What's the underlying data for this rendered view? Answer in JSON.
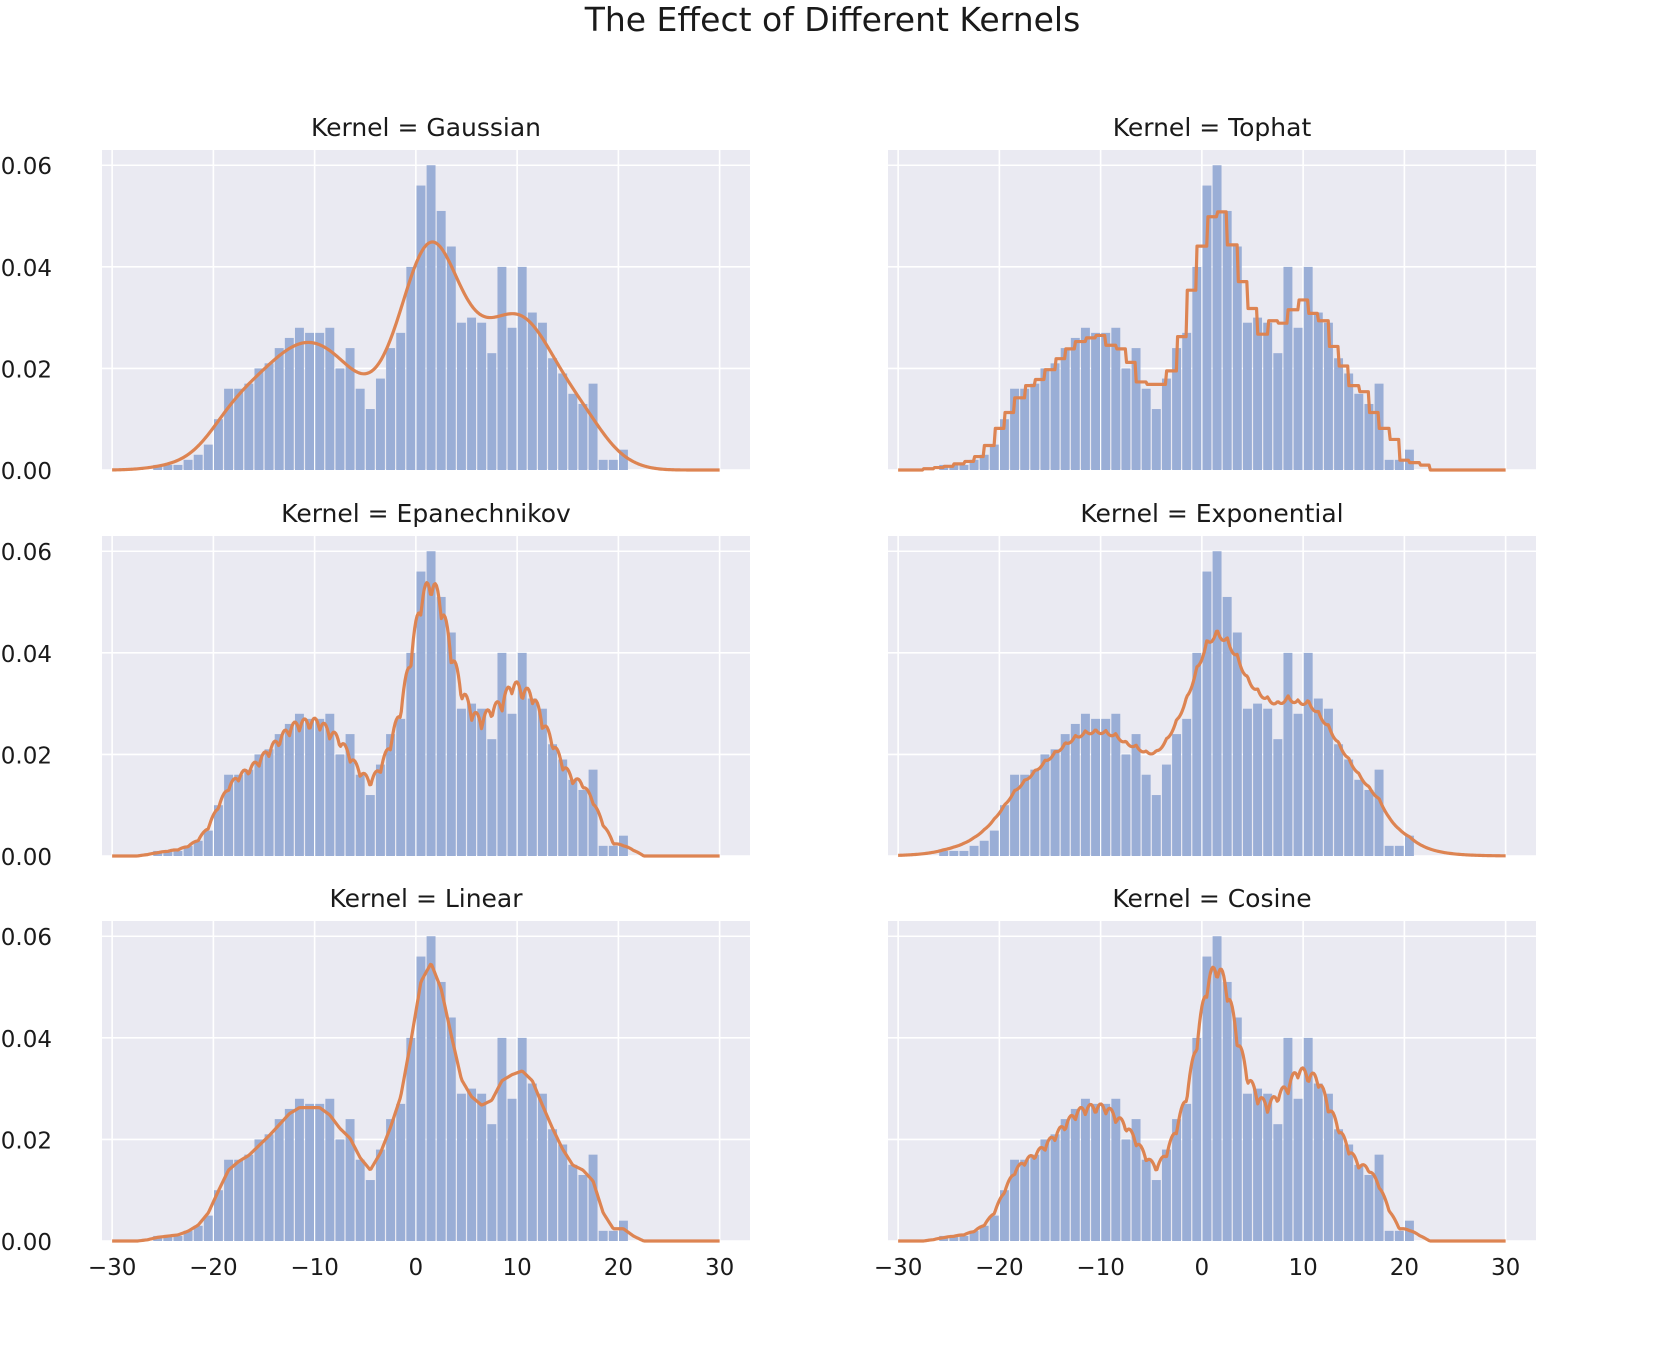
{
  "figure": {
    "title": "The Effect of Different Kernels"
  },
  "colors": {
    "background": "#eaeaf2",
    "grid": "#ffffff",
    "bars": "#9aaed6",
    "kde": "#dd8452",
    "text": "#1a1a1a"
  },
  "chart_data": [
    {
      "type": "bar",
      "title": "Kernel = Gaussian",
      "kernel": "gaussian",
      "bandwidth": 2.0,
      "grid": true,
      "xlim": [
        -31,
        33
      ],
      "ylim": [
        0,
        0.063
      ],
      "xticks": [
        -30,
        -20,
        -10,
        0,
        10,
        20,
        30
      ],
      "xtick_labels": [
        "−30",
        "−20",
        "−10",
        "0",
        "10",
        "20",
        "30"
      ],
      "yticks": [
        0,
        0.02,
        0.04,
        0.06
      ],
      "ytick_labels": [
        "0.00",
        "0.02",
        "0.04",
        "0.06"
      ],
      "show_xticks": false,
      "show_yticks": true
    },
    {
      "type": "bar",
      "title": "Kernel = Tophat",
      "kernel": "tophat",
      "bandwidth": 2.0,
      "grid": true,
      "xlim": [
        -31,
        33
      ],
      "ylim": [
        0,
        0.063
      ],
      "xticks": [
        -30,
        -20,
        -10,
        0,
        10,
        20,
        30
      ],
      "xtick_labels": [
        "−30",
        "−20",
        "−10",
        "0",
        "10",
        "20",
        "30"
      ],
      "yticks": [
        0,
        0.02,
        0.04,
        0.06
      ],
      "ytick_labels": [
        "0.00",
        "0.02",
        "0.04",
        "0.06"
      ],
      "show_xticks": false,
      "show_yticks": false
    },
    {
      "type": "bar",
      "title": "Kernel = Epanechnikov",
      "kernel": "epanechnikov",
      "bandwidth": 2.0,
      "grid": true,
      "xlim": [
        -31,
        33
      ],
      "ylim": [
        0,
        0.063
      ],
      "xticks": [
        -30,
        -20,
        -10,
        0,
        10,
        20,
        30
      ],
      "xtick_labels": [
        "−30",
        "−20",
        "−10",
        "0",
        "10",
        "20",
        "30"
      ],
      "yticks": [
        0,
        0.02,
        0.04,
        0.06
      ],
      "ytick_labels": [
        "0.00",
        "0.02",
        "0.04",
        "0.06"
      ],
      "show_xticks": false,
      "show_yticks": true
    },
    {
      "type": "bar",
      "title": "Kernel = Exponential",
      "kernel": "exponential",
      "bandwidth": 2.0,
      "grid": true,
      "xlim": [
        -31,
        33
      ],
      "ylim": [
        0,
        0.063
      ],
      "xticks": [
        -30,
        -20,
        -10,
        0,
        10,
        20,
        30
      ],
      "xtick_labels": [
        "−30",
        "−20",
        "−10",
        "0",
        "10",
        "20",
        "30"
      ],
      "yticks": [
        0,
        0.02,
        0.04,
        0.06
      ],
      "ytick_labels": [
        "0.00",
        "0.02",
        "0.04",
        "0.06"
      ],
      "show_xticks": false,
      "show_yticks": false
    },
    {
      "type": "bar",
      "title": "Kernel = Linear",
      "kernel": "linear",
      "bandwidth": 2.0,
      "grid": true,
      "xlim": [
        -31,
        33
      ],
      "ylim": [
        0,
        0.063
      ],
      "xticks": [
        -30,
        -20,
        -10,
        0,
        10,
        20,
        30
      ],
      "xtick_labels": [
        "−30",
        "−20",
        "−10",
        "0",
        "10",
        "20",
        "30"
      ],
      "yticks": [
        0,
        0.02,
        0.04,
        0.06
      ],
      "ytick_labels": [
        "0.00",
        "0.02",
        "0.04",
        "0.06"
      ],
      "show_xticks": true,
      "show_yticks": true
    },
    {
      "type": "bar",
      "title": "Kernel = Cosine",
      "kernel": "cosine",
      "bandwidth": 2.0,
      "grid": true,
      "xlim": [
        -31,
        33
      ],
      "ylim": [
        0,
        0.063
      ],
      "xticks": [
        -30,
        -20,
        -10,
        0,
        10,
        20,
        30
      ],
      "xtick_labels": [
        "−30",
        "−20",
        "−10",
        "0",
        "10",
        "20",
        "30"
      ],
      "yticks": [
        0,
        0.02,
        0.04,
        0.06
      ],
      "ytick_labels": [
        "0.00",
        "0.02",
        "0.04",
        "0.06"
      ],
      "show_xticks": true,
      "show_yticks": false
    }
  ],
  "histogram": {
    "bin_edges": [
      -26,
      -25,
      -24,
      -23,
      -22,
      -21,
      -20,
      -19,
      -18,
      -17,
      -16,
      -15,
      -14,
      -13,
      -12,
      -11,
      -10,
      -9,
      -8,
      -7,
      -6,
      -5,
      -4,
      -3,
      -2,
      -1,
      0,
      1,
      2,
      3,
      4,
      5,
      6,
      7,
      8,
      9,
      10,
      11,
      12,
      13,
      14,
      15,
      16,
      17,
      18,
      19,
      20,
      21
    ],
    "densities": [
      0.001,
      0.001,
      0.001,
      0.002,
      0.003,
      0.005,
      0.01,
      0.016,
      0.016,
      0.017,
      0.02,
      0.021,
      0.024,
      0.026,
      0.028,
      0.027,
      0.027,
      0.028,
      0.02,
      0.024,
      0.016,
      0.012,
      0.018,
      0.024,
      0.027,
      0.04,
      0.056,
      0.06,
      0.051,
      0.044,
      0.029,
      0.03,
      0.029,
      0.023,
      0.04,
      0.028,
      0.04,
      0.031,
      0.029,
      0.022,
      0.019,
      0.015,
      0.013,
      0.017,
      0.002,
      0.002,
      0.004
    ]
  }
}
